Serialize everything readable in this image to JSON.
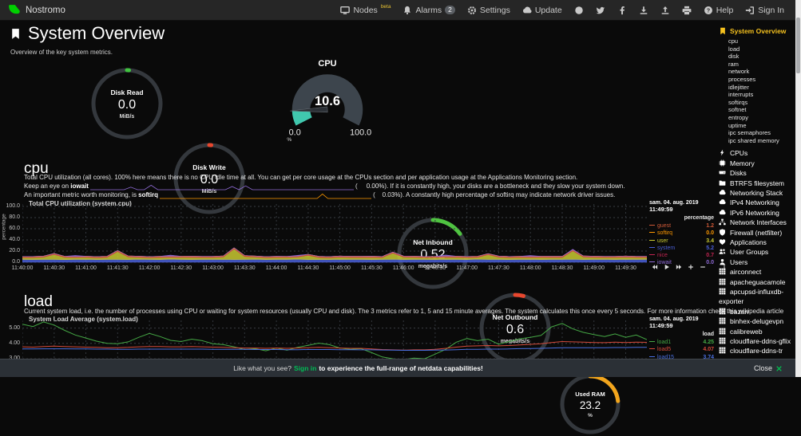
{
  "navbar": {
    "hostname": "Nostromo",
    "items": [
      {
        "id": "nodes",
        "label": "Nodes",
        "sup": "beta",
        "icon": "monitor-icon"
      },
      {
        "id": "alarms",
        "label": "Alarms",
        "badge": "2",
        "icon": "bell-icon"
      },
      {
        "id": "settings",
        "label": "Settings",
        "icon": "gear-icon"
      },
      {
        "id": "update",
        "label": "Update",
        "icon": "cloud-icon"
      },
      {
        "id": "github",
        "icon": "github-icon"
      },
      {
        "id": "twitter",
        "icon": "twitter-icon"
      },
      {
        "id": "facebook",
        "icon": "facebook-icon"
      },
      {
        "id": "save-snapshot",
        "icon": "download-icon"
      },
      {
        "id": "load-snapshot",
        "icon": "upload-icon"
      },
      {
        "id": "print",
        "icon": "print-icon"
      },
      {
        "id": "help",
        "label": "Help",
        "icon": "help-icon"
      },
      {
        "id": "sign-in",
        "label": "Sign In",
        "icon": "signin-icon"
      }
    ]
  },
  "header": {
    "title": "System Overview",
    "subtitle": "Overview of the key system metrics."
  },
  "gauges": {
    "disk_read": {
      "label": "Disk Read",
      "value": "0.0",
      "unit": "MiB/s",
      "percent": 1,
      "color": "#41c341"
    },
    "disk_write": {
      "label": "Disk Write",
      "value": "0.0",
      "unit": "MiB/s",
      "percent": 1,
      "color": "#e8472e"
    },
    "cpu": {
      "label": "CPU",
      "value": "10.6",
      "min": "0.0",
      "max": "100.0",
      "unit": "%",
      "percent_value": 10.6,
      "min_value": 0,
      "max_value": 100,
      "color": "#40c8ae"
    },
    "net_inbound": {
      "label": "Net Inbound",
      "value": "0.52",
      "unit": "megabits/s",
      "percent": 15,
      "color": "#4fc341"
    },
    "net_outbound": {
      "label": "Net Outbound",
      "value": "0.6",
      "unit": "megabits/s",
      "percent": 4,
      "color": "#e8472e"
    },
    "used_ram": {
      "label": "Used RAM",
      "value": "23.2",
      "unit": "%",
      "percent": 23.2,
      "color": "#f2a51c"
    }
  },
  "cpu_section": {
    "heading": "cpu",
    "p1": "Total CPU utilization (all cores). 100% here means there is no CPU idle time at all. You can get per core usage at the CPUs section and per application usage at the Applications Monitoring section.",
    "line2": {
      "prefix": "Keep an eye on ",
      "keyword": "iowait",
      "paren": "(     0.00%).",
      "suffix": " If it is constantly high, your disks are a bottleneck and they slow your system down."
    },
    "line3": {
      "prefix": "An important metric worth monitoring, is ",
      "keyword": "softirq",
      "paren": "(    0.03%).",
      "suffix": " A constantly high percentage of softirq may indicate network driver issues."
    },
    "iowait_spark": [
      0,
      0,
      0,
      0,
      0,
      0,
      4,
      0,
      0,
      7,
      0,
      0,
      0,
      0,
      0,
      0,
      0,
      0,
      0,
      0,
      0,
      5,
      0,
      6,
      0,
      0,
      0,
      0,
      0,
      0,
      0,
      0,
      0,
      0,
      0,
      0,
      0,
      0,
      0,
      0
    ],
    "softirq_spark": [
      0,
      0,
      0,
      0,
      0,
      0,
      0,
      0,
      0,
      0,
      0,
      0,
      0,
      0,
      0,
      0,
      0,
      0,
      0,
      0,
      0,
      0,
      0,
      0,
      0,
      0,
      0,
      0,
      0,
      0,
      7,
      0,
      0,
      0,
      0,
      0,
      0,
      0,
      0,
      0
    ]
  },
  "cpu_chart": {
    "type": "area-stacked",
    "title": "Total CPU utilization (system.cpu)",
    "ylabel": "percentage",
    "date": "sam. 04. aug. 2019",
    "time": "11:49:59",
    "legend_unit": "percentage",
    "ylim": [
      0,
      100
    ],
    "yticks": [
      "100.0",
      "80.0",
      "60.0",
      "40.0",
      "20.0",
      "0.0"
    ],
    "ytick_values": [
      100,
      80,
      60,
      40,
      20,
      0
    ],
    "xticks": [
      "11:40:00",
      "11:40:30",
      "11:41:00",
      "11:41:30",
      "11:42:00",
      "11:42:30",
      "11:43:00",
      "11:43:30",
      "11:44:00",
      "11:44:30",
      "11:45:00",
      "11:45:30",
      "11:46:00",
      "11:46:30",
      "11:47:00",
      "11:47:30",
      "11:48:00",
      "11:48:30",
      "11:49:00",
      "11:49:30"
    ],
    "series": [
      {
        "name": "system",
        "color": "#4a5fd6",
        "values": [
          5.0,
          4.8,
          5.2,
          5.0,
          4.7,
          5.1,
          5.3,
          4.8,
          5.0,
          5.2,
          4.9,
          5.4,
          5.0,
          4.8,
          5.5,
          5.1,
          4.9,
          5.2,
          5.0,
          5.3,
          4.9,
          5.1,
          5.4,
          4.8,
          5.0,
          5.2,
          5.5,
          4.9,
          5.1,
          4.8,
          5.3,
          5.0,
          5.2,
          4.9,
          5.1,
          5.4,
          4.9,
          5.2,
          5.0,
          4.8,
          5.3,
          5.1,
          4.9,
          5.5,
          5.0,
          5.2,
          4.8,
          5.1,
          5.3,
          4.9,
          5.2,
          5.0,
          5.4,
          4.8,
          5.1,
          5.2,
          4.9,
          5.3,
          5.0,
          5.2
        ]
      },
      {
        "name": "user",
        "color": "#c9c931",
        "values": [
          3.4,
          3.6,
          3.9,
          9.0,
          4.1,
          3.5,
          3.7,
          3.4,
          3.8,
          14.0,
          4.6,
          3.5,
          3.3,
          3.9,
          3.5,
          3.7,
          4.0,
          3.4,
          3.6,
          4.3,
          19.0,
          5.2,
          3.9,
          3.5,
          3.7,
          3.3,
          3.8,
          7.5,
          3.6,
          3.4,
          3.9,
          3.7,
          3.5,
          4.0,
          3.3,
          11.0,
          4.4,
          3.7,
          3.4,
          3.8,
          3.6,
          3.9,
          3.5,
          3.3,
          8.5,
          4.0,
          3.6,
          3.7,
          3.4,
          3.9,
          3.5,
          3.7,
          15.0,
          4.6,
          3.8,
          3.4,
          3.6,
          3.9,
          3.5,
          3.4
        ]
      },
      {
        "name": "nice",
        "color": "#c12552",
        "values": [
          0.7,
          0.7,
          0.7,
          0.7,
          0.7,
          0.7,
          0.7,
          0.7,
          0.7,
          0.7,
          0.7,
          0.7,
          0.7,
          0.7,
          0.7,
          0.7,
          0.7,
          0.7,
          0.7,
          0.7,
          0.7,
          0.7,
          0.7,
          0.7,
          0.7,
          0.7,
          0.7,
          0.7,
          0.7,
          0.7,
          0.7,
          0.7,
          0.7,
          0.7,
          0.7,
          0.7,
          0.7,
          0.7,
          0.7,
          0.7,
          0.7,
          0.7,
          0.7,
          0.7,
          0.7,
          0.7,
          0.7,
          0.7,
          0.7,
          0.7,
          0.7,
          0.7,
          0.7,
          0.7,
          0.7,
          0.7,
          0.7,
          0.7,
          0.7,
          0.7
        ]
      },
      {
        "name": "guest",
        "color": "#ce5937",
        "values": [
          1.2,
          1.2,
          1.2,
          1.2,
          1.2,
          1.2,
          1.2,
          1.2,
          1.2,
          1.2,
          1.2,
          1.2,
          1.2,
          1.2,
          1.2,
          1.2,
          1.2,
          1.2,
          1.2,
          1.2,
          1.2,
          1.2,
          1.2,
          1.2,
          1.2,
          1.2,
          1.2,
          1.2,
          1.2,
          1.2,
          1.2,
          1.2,
          1.2,
          1.2,
          1.2,
          1.2,
          1.2,
          1.2,
          1.2,
          1.2,
          1.2,
          1.2,
          1.2,
          1.2,
          1.2,
          1.2,
          1.2,
          1.2,
          1.2,
          1.2,
          1.2,
          1.2,
          1.2,
          1.2,
          1.2,
          1.2,
          1.2,
          1.2,
          1.2,
          1.2
        ]
      },
      {
        "name": "softirq",
        "color": "#ff9900",
        "values": [
          0,
          0,
          0,
          0,
          0,
          0,
          0,
          0,
          0,
          0,
          0,
          0,
          0,
          0,
          0,
          0,
          0,
          0,
          0,
          0,
          0,
          0,
          0,
          0,
          0,
          0,
          0,
          0,
          0,
          0,
          0,
          0,
          0,
          0,
          0,
          0,
          0,
          0,
          0,
          0,
          0,
          0,
          0,
          0,
          0,
          0,
          0,
          0,
          0,
          0,
          0,
          0,
          0,
          0,
          0,
          0,
          0,
          0,
          0,
          0
        ]
      },
      {
        "name": "iowait",
        "color": "#8f6bd6",
        "values": [
          0,
          0,
          0,
          0,
          0,
          1.5,
          0,
          0,
          0,
          0,
          0,
          0,
          0,
          0,
          2.0,
          0,
          0,
          0,
          0,
          0,
          0,
          0,
          0,
          0,
          0,
          0,
          1.2,
          0,
          0,
          0,
          0,
          0,
          0,
          0,
          0,
          0,
          0,
          0,
          0,
          0,
          2.2,
          0,
          0,
          0,
          0,
          0,
          0,
          0,
          1.4,
          0,
          0,
          0,
          1.0,
          0,
          0,
          0,
          0,
          0,
          0,
          0
        ]
      }
    ],
    "legend": [
      {
        "name": "guest",
        "value": "1.2"
      },
      {
        "name": "softirq",
        "value": "0.0"
      },
      {
        "name": "user",
        "value": "3.4"
      },
      {
        "name": "system",
        "value": "5.2"
      },
      {
        "name": "nice",
        "value": "0.7"
      },
      {
        "name": "iowait",
        "value": "0.0"
      }
    ]
  },
  "load_section": {
    "heading": "load",
    "p1": "Current system load, i.e. the number of processes using CPU or waiting for system resources (usually CPU and disk). The 3 metrics refer to 1, 5 and 15 minute averages. The system calculates this once every 5 seconds. For more information check this wikipedia article"
  },
  "load_chart": {
    "type": "line",
    "title": "System Load Average (system.load)",
    "date": "sam. 04. aug. 2019",
    "time": "11:49:59",
    "legend_unit": "load",
    "ylim": [
      2.9,
      5.5
    ],
    "yticks": [
      "5.00",
      "4.00",
      "3.00"
    ],
    "ytick_values": [
      5,
      4,
      3
    ],
    "series": [
      {
        "name": "load1",
        "color": "#45a845",
        "values": [
          5.25,
          5.1,
          5.4,
          5.2,
          4.85,
          4.55,
          4.35,
          4.15,
          4.0,
          3.98,
          4.1,
          4.4,
          4.65,
          4.45,
          4.2,
          4.12,
          4.28,
          4.18,
          3.98,
          3.92,
          3.78,
          3.6,
          3.66,
          3.52,
          3.7,
          3.56,
          3.74,
          3.88,
          4.02,
          3.92,
          3.7,
          3.62,
          3.66,
          3.4,
          3.12,
          3.0,
          2.94,
          3.04,
          3.0,
          3.3,
          3.62,
          4.08,
          4.32,
          4.18,
          4.28,
          3.95,
          4.12,
          4.3,
          4.4,
          4.52,
          5.08,
          5.3,
          4.95,
          4.72,
          4.58,
          4.45,
          4.62,
          4.4,
          4.55,
          4.25
        ]
      },
      {
        "name": "load5",
        "color": "#d44a3a",
        "values": [
          3.78,
          3.76,
          3.8,
          3.82,
          3.8,
          3.78,
          3.76,
          3.74,
          3.72,
          3.72,
          3.74,
          3.78,
          3.8,
          3.8,
          3.78,
          3.78,
          3.8,
          3.78,
          3.76,
          3.74,
          3.72,
          3.7,
          3.7,
          3.68,
          3.7,
          3.68,
          3.7,
          3.72,
          3.74,
          3.72,
          3.7,
          3.68,
          3.68,
          3.64,
          3.6,
          3.58,
          3.56,
          3.58,
          3.58,
          3.62,
          3.68,
          3.76,
          3.82,
          3.84,
          3.86,
          3.84,
          3.86,
          3.9,
          3.94,
          3.98,
          4.06,
          4.12,
          4.1,
          4.08,
          4.06,
          4.05,
          4.08,
          4.06,
          4.08,
          4.07
        ]
      },
      {
        "name": "load15",
        "color": "#4a6fe0",
        "values": [
          3.64,
          3.64,
          3.65,
          3.65,
          3.65,
          3.64,
          3.64,
          3.63,
          3.63,
          3.62,
          3.62,
          3.63,
          3.63,
          3.63,
          3.63,
          3.63,
          3.63,
          3.63,
          3.62,
          3.62,
          3.61,
          3.61,
          3.6,
          3.6,
          3.6,
          3.59,
          3.59,
          3.6,
          3.6,
          3.6,
          3.59,
          3.59,
          3.58,
          3.58,
          3.57,
          3.56,
          3.55,
          3.55,
          3.55,
          3.56,
          3.57,
          3.59,
          3.61,
          3.62,
          3.63,
          3.63,
          3.64,
          3.66,
          3.67,
          3.68,
          3.7,
          3.72,
          3.72,
          3.72,
          3.72,
          3.72,
          3.73,
          3.73,
          3.74,
          3.74
        ]
      }
    ],
    "legend": [
      {
        "name": "load1",
        "value": "4.25"
      },
      {
        "name": "load5",
        "value": "4.07"
      },
      {
        "name": "load15",
        "value": "3.74"
      }
    ]
  },
  "toolbar": {
    "icons": [
      "backward",
      "play",
      "forward",
      "plus",
      "minus",
      "resize"
    ]
  },
  "sidebar": {
    "active": "System Overview",
    "sub_items": [
      "cpu",
      "load",
      "disk",
      "ram",
      "network",
      "processes",
      "idlejitter",
      "interrupts",
      "softirqs",
      "softnet",
      "entropy",
      "uptime",
      "ipc semaphores",
      "ipc shared memory"
    ],
    "menu_items": [
      {
        "icon": "bolt-icon",
        "label": "CPUs"
      },
      {
        "icon": "memory-icon",
        "label": "Memory"
      },
      {
        "icon": "disk-icon",
        "label": "Disks"
      },
      {
        "icon": "folder-icon",
        "label": "BTRFS filesystem"
      },
      {
        "icon": "cloud-icon",
        "label": "Networking Stack"
      },
      {
        "icon": "cloud-icon",
        "label": "IPv4 Networking"
      },
      {
        "icon": "cloud-icon",
        "label": "IPv6 Networking"
      },
      {
        "icon": "sitemap-icon",
        "label": "Network Interfaces"
      },
      {
        "icon": "shield-icon",
        "label": "Firewall (netfilter)"
      },
      {
        "icon": "heartbeat-icon",
        "label": "Applications"
      },
      {
        "icon": "users-icon",
        "label": "User Groups"
      },
      {
        "icon": "user-icon",
        "label": "Users"
      },
      {
        "icon": "grid-icon",
        "label": "airconnect"
      },
      {
        "icon": "grid-icon",
        "label": "apacheguacamole"
      },
      {
        "icon": "grid-icon",
        "label": "apcupsd-influxdb-exporter"
      },
      {
        "icon": "grid-icon",
        "label": "bazarr"
      },
      {
        "icon": "grid-icon",
        "label": "binhex-delugevpn"
      },
      {
        "icon": "grid-icon",
        "label": "calibreweb"
      },
      {
        "icon": "grid-icon",
        "label": "cloudflare-ddns-gflix"
      },
      {
        "icon": "grid-icon",
        "label": "cloudflare-ddns-tr"
      }
    ]
  },
  "footer": {
    "prefix": "Like what you see?",
    "link": "Sign in",
    "suffix": "to experience the full-range of netdata capabilities!",
    "close_label": "Close",
    "accent": "#00bd56"
  }
}
